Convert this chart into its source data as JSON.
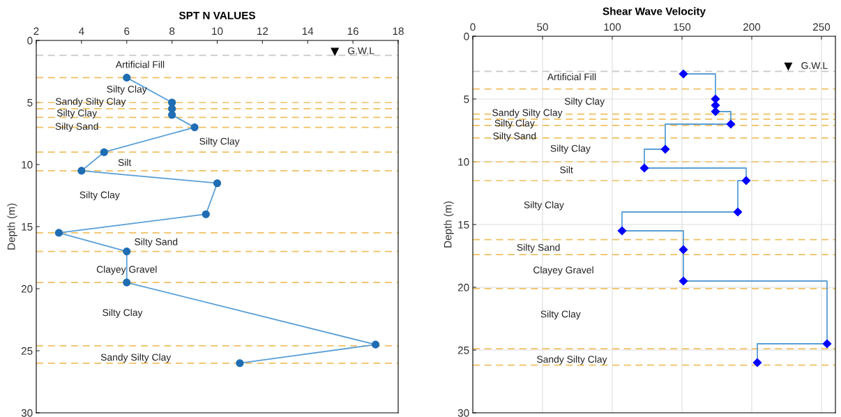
{
  "chart_data": [
    {
      "type": "line",
      "title": "SPT N VALUES",
      "ylabel": "Depth (m)",
      "xlim": [
        2,
        18
      ],
      "xticks": [
        2,
        4,
        6,
        8,
        10,
        12,
        14,
        16,
        18
      ],
      "ylim": [
        30,
        0
      ],
      "yticks": [
        0,
        5,
        10,
        15,
        20,
        25,
        30
      ],
      "grid": false,
      "legend": false,
      "marker": "circle",
      "line_style": "solid",
      "series": [
        {
          "color": "#5a9fd6",
          "colors": [
            "#1f6db3",
            "#1f6db3",
            "#1f6db3",
            "#1f6db3",
            "#1f6db3",
            "#1f6db3",
            "#1f6db3",
            "#1f6db3",
            "#1f6db3",
            "#1f6db3",
            "#1f6db3",
            "#1f6db3",
            "#1f6db3",
            "#1f6db3"
          ],
          "x": [
            6,
            8,
            8,
            8,
            9,
            5,
            4,
            10,
            9.5,
            3,
            6,
            6,
            17,
            11
          ],
          "values": [
            3,
            5,
            5.5,
            6,
            7,
            9,
            10.5,
            11.5,
            14,
            15.5,
            17,
            19.5,
            24.5,
            26
          ]
        }
      ],
      "ref_lines": [
        {
          "axis": "y",
          "value": 1.2,
          "color": "#c8c8c8",
          "line_style": "dashed"
        },
        {
          "axis": "y",
          "value": 3,
          "color": "#f0c060",
          "line_style": "dashed"
        },
        {
          "axis": "y",
          "value": 5,
          "color": "#f0c060",
          "line_style": "dashed"
        },
        {
          "axis": "y",
          "value": 5.5,
          "color": "#f0c060",
          "line_style": "dashed"
        },
        {
          "axis": "y",
          "value": 6.2,
          "color": "#f0c060",
          "line_style": "dashed"
        },
        {
          "axis": "y",
          "value": 7,
          "color": "#f0c060",
          "line_style": "dashed"
        },
        {
          "axis": "y",
          "value": 9,
          "color": "#f0c060",
          "line_style": "dashed"
        },
        {
          "axis": "y",
          "value": 10.5,
          "color": "#f0c060",
          "line_style": "dashed"
        },
        {
          "axis": "y",
          "value": 15.5,
          "color": "#f0c060",
          "line_style": "dashed"
        },
        {
          "axis": "y",
          "value": 17,
          "color": "#f0c060",
          "line_style": "dashed"
        },
        {
          "axis": "y",
          "value": 19.5,
          "color": "#f0c060",
          "line_style": "dashed"
        },
        {
          "axis": "y",
          "value": 24.6,
          "color": "#f0c060",
          "line_style": "dashed"
        },
        {
          "axis": "y",
          "value": 26,
          "color": "#f0c060",
          "line_style": "dashed"
        }
      ],
      "annotations": [
        "G.W.L",
        "Artificial Fill",
        "Silty Clay",
        "Sandy Silty Clay",
        "Silty Clay",
        "Silty Sand",
        "Silty Clay",
        "Silt",
        "Silty Clay",
        "Silty Sand",
        "Clayey Gravel",
        "Silty Clay",
        "Sandy Silty Clay"
      ]
    },
    {
      "type": "step",
      "title": "Shear Wave Velocity",
      "ylabel": "Depth (m)",
      "xlim": [
        0,
        260
      ],
      "xticks": [
        0,
        50,
        100,
        150,
        200,
        250
      ],
      "ylim": [
        30,
        0
      ],
      "yticks": [
        0,
        5,
        10,
        15,
        20,
        25,
        30
      ],
      "grid": true,
      "legend": false,
      "marker": "diamond",
      "line_style": "solid",
      "series": [
        {
          "color": "#5a9fd6",
          "colors": [
            "#0000ff",
            "#0000ff",
            "#0000ff",
            "#0000ff",
            "#0000ff",
            "#0000ff",
            "#0000ff",
            "#0000ff",
            "#0000ff",
            "#0000ff",
            "#0000ff",
            "#0000ff",
            "#0000ff",
            "#0000ff"
          ],
          "x": [
            151,
            174,
            174,
            174,
            185,
            138,
            123,
            196,
            190,
            107,
            151,
            151,
            254,
            204
          ],
          "values": [
            3,
            5,
            5.5,
            6,
            7,
            9,
            10.5,
            11.5,
            14,
            15.5,
            17,
            19.5,
            24.5,
            26
          ]
        }
      ],
      "ref_lines": [
        {
          "axis": "y",
          "value": 2.8,
          "color": "#c8c8c8",
          "line_style": "dashed"
        },
        {
          "axis": "y",
          "value": 4.2,
          "color": "#f0c060",
          "line_style": "dashed"
        },
        {
          "axis": "y",
          "value": 6.2,
          "color": "#f0c060",
          "line_style": "dashed"
        },
        {
          "axis": "y",
          "value": 6.6,
          "color": "#f0c060",
          "line_style": "dashed"
        },
        {
          "axis": "y",
          "value": 7.1,
          "color": "#f0c060",
          "line_style": "dashed"
        },
        {
          "axis": "y",
          "value": 8.1,
          "color": "#f0c060",
          "line_style": "dashed"
        },
        {
          "axis": "y",
          "value": 10,
          "color": "#f0c060",
          "line_style": "dashed"
        },
        {
          "axis": "y",
          "value": 11.5,
          "color": "#f0c060",
          "line_style": "dashed"
        },
        {
          "axis": "y",
          "value": 16.2,
          "color": "#f0c060",
          "line_style": "dashed"
        },
        {
          "axis": "y",
          "value": 17.4,
          "color": "#f0c060",
          "line_style": "dashed"
        },
        {
          "axis": "y",
          "value": 20.1,
          "color": "#f0c060",
          "line_style": "dashed"
        },
        {
          "axis": "y",
          "value": 24.9,
          "color": "#f0c060",
          "line_style": "dashed"
        },
        {
          "axis": "y",
          "value": 26.2,
          "color": "#f0c060",
          "line_style": "dashed"
        }
      ],
      "annotations": [
        "G.W.L",
        "Artificial Fill",
        "Silty Clay",
        "Sandy Silty Clay",
        "Silty Clay",
        "Silty Sand",
        "Silty Clay",
        "Silt",
        "Silty Clay",
        "Silty Sand",
        "Clayey Gravel",
        "Silty Clay",
        "Sandy Silty Clay"
      ]
    }
  ]
}
